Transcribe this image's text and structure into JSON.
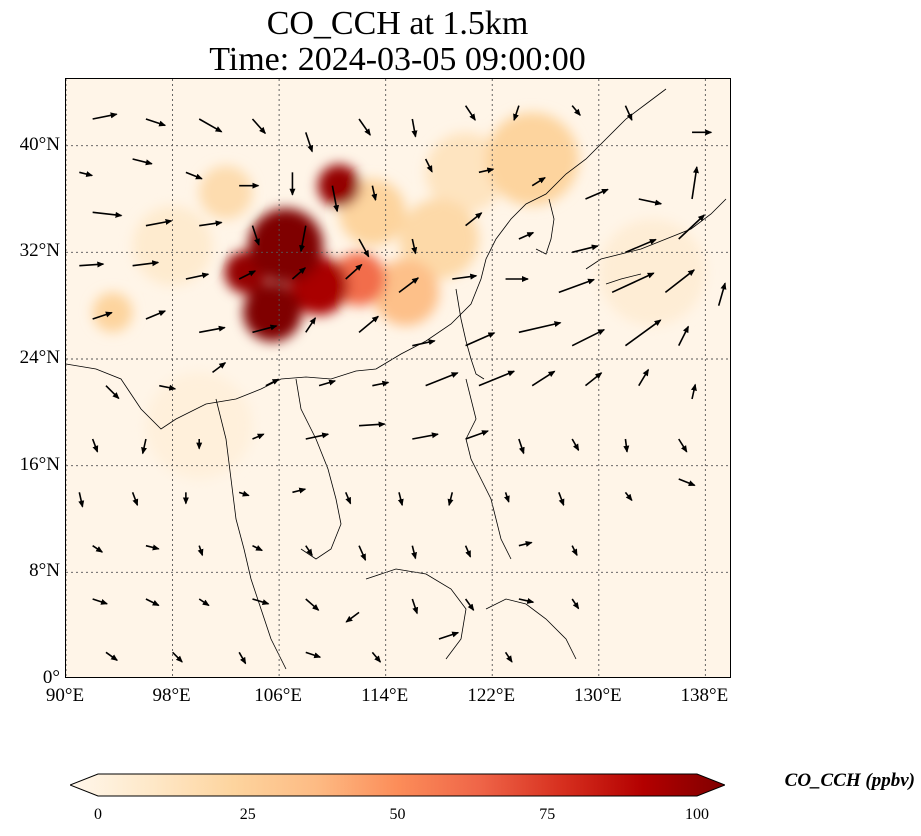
{
  "figure": {
    "title_line_1": "CO_CCH at 1.5km",
    "title_line_2": "Time: 2024-03-05 09:00:00"
  },
  "map": {
    "projection": "PlateCarree",
    "lon_range": [
      90,
      140
    ],
    "lat_range": [
      0,
      45
    ],
    "gridlines": "dotted",
    "lat_ticks": [
      {
        "value": 0,
        "label": "0°"
      },
      {
        "value": 8,
        "label": "8°N"
      },
      {
        "value": 16,
        "label": "16°N"
      },
      {
        "value": 24,
        "label": "24°N"
      },
      {
        "value": 32,
        "label": "32°N"
      },
      {
        "value": 40,
        "label": "40°N"
      }
    ],
    "lon_ticks": [
      {
        "value": 90,
        "label": "90°E"
      },
      {
        "value": 98,
        "label": "98°E"
      },
      {
        "value": 106,
        "label": "106°E"
      },
      {
        "value": 114,
        "label": "114°E"
      },
      {
        "value": 122,
        "label": "122°E"
      },
      {
        "value": 130,
        "label": "130°E"
      },
      {
        "value": 138,
        "label": "138°E"
      }
    ],
    "colormap": "OrRd",
    "colormap_stops": [
      "#fff7ec",
      "#fee8c8",
      "#fdd49e",
      "#fdbb84",
      "#fc8d59",
      "#ef6548",
      "#d7301f",
      "#b30000",
      "#7f0000"
    ],
    "background_color": "#fff5e8",
    "coastline_color": "#000000",
    "field_blobs_co_ppbv": [
      {
        "lon": 106.5,
        "lat": 32.5,
        "value": 100,
        "spread": 2.8
      },
      {
        "lon": 110.5,
        "lat": 37.0,
        "value": 95,
        "spread": 1.6
      },
      {
        "lon": 105.5,
        "lat": 27.5,
        "value": 100,
        "spread": 2.2
      },
      {
        "lon": 109.0,
        "lat": 29.5,
        "value": 90,
        "spread": 2.2
      },
      {
        "lon": 103.5,
        "lat": 30.5,
        "value": 95,
        "spread": 1.6
      },
      {
        "lon": 112.0,
        "lat": 30.0,
        "value": 60,
        "spread": 2.0
      },
      {
        "lon": 115.5,
        "lat": 29.0,
        "value": 35,
        "spread": 2.5
      },
      {
        "lon": 118.0,
        "lat": 33.0,
        "value": 22,
        "spread": 3.0
      },
      {
        "lon": 113.0,
        "lat": 35.0,
        "value": 25,
        "spread": 2.5
      },
      {
        "lon": 125.0,
        "lat": 39.0,
        "value": 25,
        "spread": 3.5
      },
      {
        "lon": 120.0,
        "lat": 38.0,
        "value": 15,
        "spread": 3.0
      },
      {
        "lon": 102.0,
        "lat": 36.5,
        "value": 20,
        "spread": 2.0
      },
      {
        "lon": 93.5,
        "lat": 27.5,
        "value": 25,
        "spread": 1.5
      },
      {
        "lon": 98.0,
        "lat": 32.5,
        "value": 10,
        "spread": 3.0
      },
      {
        "lon": 134.0,
        "lat": 30.5,
        "value": 8,
        "spread": 4.0
      },
      {
        "lon": 100.0,
        "lat": 19.0,
        "value": 6,
        "spread": 4.0
      }
    ],
    "wind_vectors": [
      {
        "lon": 92,
        "lat": 42,
        "u": 1.5,
        "v": 0.3
      },
      {
        "lon": 96,
        "lat": 42,
        "u": 1.2,
        "v": -0.4
      },
      {
        "lon": 100,
        "lat": 42,
        "u": 1.4,
        "v": -0.8
      },
      {
        "lon": 104,
        "lat": 42,
        "u": 0.8,
        "v": -0.9
      },
      {
        "lon": 108,
        "lat": 41,
        "u": 0.4,
        "v": -1.2
      },
      {
        "lon": 112,
        "lat": 42,
        "u": 0.7,
        "v": -1.0
      },
      {
        "lon": 116,
        "lat": 42,
        "u": 0.2,
        "v": -1.1
      },
      {
        "lon": 120,
        "lat": 43,
        "u": 0.6,
        "v": -0.9
      },
      {
        "lon": 124,
        "lat": 43,
        "u": -0.3,
        "v": -0.9
      },
      {
        "lon": 128,
        "lat": 43,
        "u": 0.5,
        "v": -0.6
      },
      {
        "lon": 132,
        "lat": 43,
        "u": 0.4,
        "v": -0.9
      },
      {
        "lon": 137,
        "lat": 41,
        "u": 1.2,
        "v": 0.0
      },
      {
        "lon": 91,
        "lat": 38,
        "u": 0.8,
        "v": -0.2
      },
      {
        "lon": 95,
        "lat": 39,
        "u": 1.2,
        "v": -0.3
      },
      {
        "lon": 99,
        "lat": 38,
        "u": 1.0,
        "v": -0.4
      },
      {
        "lon": 103,
        "lat": 37,
        "u": 1.2,
        "v": 0.0
      },
      {
        "lon": 107,
        "lat": 38,
        "u": 0.0,
        "v": -1.4
      },
      {
        "lon": 110,
        "lat": 37,
        "u": 0.3,
        "v": -1.6
      },
      {
        "lon": 113,
        "lat": 37,
        "u": 0.2,
        "v": -0.9
      },
      {
        "lon": 117,
        "lat": 39,
        "u": 0.4,
        "v": -0.8
      },
      {
        "lon": 121,
        "lat": 38,
        "u": 0.9,
        "v": 0.2
      },
      {
        "lon": 125,
        "lat": 37,
        "u": 0.8,
        "v": 0.5
      },
      {
        "lon": 129,
        "lat": 36,
        "u": 1.4,
        "v": 0.6
      },
      {
        "lon": 133,
        "lat": 36,
        "u": 1.4,
        "v": -0.3
      },
      {
        "lon": 137,
        "lat": 36,
        "u": 0.3,
        "v": 2.0
      },
      {
        "lon": 92,
        "lat": 35,
        "u": 1.8,
        "v": -0.2
      },
      {
        "lon": 96,
        "lat": 34,
        "u": 1.6,
        "v": 0.3
      },
      {
        "lon": 100,
        "lat": 34,
        "u": 1.4,
        "v": 0.2
      },
      {
        "lon": 104,
        "lat": 34,
        "u": 0.4,
        "v": -1.2
      },
      {
        "lon": 108,
        "lat": 34,
        "u": -0.3,
        "v": -1.6
      },
      {
        "lon": 112,
        "lat": 33,
        "u": 0.6,
        "v": -1.1
      },
      {
        "lon": 116,
        "lat": 33,
        "u": 0.2,
        "v": -0.9
      },
      {
        "lon": 120,
        "lat": 34,
        "u": 1.0,
        "v": 0.8
      },
      {
        "lon": 124,
        "lat": 33,
        "u": 0.9,
        "v": 0.4
      },
      {
        "lon": 128,
        "lat": 32,
        "u": 1.6,
        "v": 0.4
      },
      {
        "lon": 132,
        "lat": 32,
        "u": 1.9,
        "v": 0.8
      },
      {
        "lon": 136,
        "lat": 33,
        "u": 1.6,
        "v": 1.5
      },
      {
        "lon": 91,
        "lat": 31,
        "u": 1.5,
        "v": 0.1
      },
      {
        "lon": 95,
        "lat": 31,
        "u": 1.6,
        "v": 0.2
      },
      {
        "lon": 99,
        "lat": 30,
        "u": 1.4,
        "v": 0.3
      },
      {
        "lon": 103,
        "lat": 30,
        "u": 1.0,
        "v": 0.5
      },
      {
        "lon": 107,
        "lat": 30,
        "u": 0.8,
        "v": 0.7
      },
      {
        "lon": 111,
        "lat": 30,
        "u": 1.0,
        "v": 0.9
      },
      {
        "lon": 115,
        "lat": 29,
        "u": 1.2,
        "v": 0.9
      },
      {
        "lon": 119,
        "lat": 30,
        "u": 1.5,
        "v": 0.2
      },
      {
        "lon": 123,
        "lat": 30,
        "u": 1.4,
        "v": 0.0
      },
      {
        "lon": 127,
        "lat": 29,
        "u": 2.2,
        "v": 0.8
      },
      {
        "lon": 131,
        "lat": 29,
        "u": 2.6,
        "v": 1.2
      },
      {
        "lon": 135,
        "lat": 29,
        "u": 1.8,
        "v": 1.4
      },
      {
        "lon": 139,
        "lat": 28,
        "u": 0.4,
        "v": 1.4
      },
      {
        "lon": 92,
        "lat": 27,
        "u": 1.2,
        "v": 0.4
      },
      {
        "lon": 96,
        "lat": 27,
        "u": 1.2,
        "v": 0.5
      },
      {
        "lon": 100,
        "lat": 26,
        "u": 1.6,
        "v": 0.3
      },
      {
        "lon": 104,
        "lat": 26,
        "u": 1.5,
        "v": 0.4
      },
      {
        "lon": 108,
        "lat": 26,
        "u": 0.6,
        "v": 0.9
      },
      {
        "lon": 112,
        "lat": 26,
        "u": 1.2,
        "v": 1.0
      },
      {
        "lon": 116,
        "lat": 25,
        "u": 1.4,
        "v": 0.3
      },
      {
        "lon": 120,
        "lat": 25,
        "u": 1.8,
        "v": 0.8
      },
      {
        "lon": 124,
        "lat": 26,
        "u": 2.6,
        "v": 0.6
      },
      {
        "lon": 128,
        "lat": 25,
        "u": 2.0,
        "v": 1.0
      },
      {
        "lon": 132,
        "lat": 25,
        "u": 2.2,
        "v": 1.6
      },
      {
        "lon": 136,
        "lat": 25,
        "u": 0.6,
        "v": 1.2
      },
      {
        "lon": 93,
        "lat": 22,
        "u": 0.8,
        "v": -0.8
      },
      {
        "lon": 97,
        "lat": 22,
        "u": 1.0,
        "v": -0.2
      },
      {
        "lon": 101,
        "lat": 23,
        "u": 0.8,
        "v": 0.6
      },
      {
        "lon": 105,
        "lat": 22,
        "u": 0.8,
        "v": 0.4
      },
      {
        "lon": 109,
        "lat": 22,
        "u": 1.0,
        "v": 0.3
      },
      {
        "lon": 113,
        "lat": 22,
        "u": 1.0,
        "v": 0.2
      },
      {
        "lon": 117,
        "lat": 22,
        "u": 2.0,
        "v": 0.8
      },
      {
        "lon": 121,
        "lat": 22,
        "u": 2.2,
        "v": 0.9
      },
      {
        "lon": 125,
        "lat": 22,
        "u": 1.4,
        "v": 0.9
      },
      {
        "lon": 129,
        "lat": 22,
        "u": 1.0,
        "v": 0.8
      },
      {
        "lon": 133,
        "lat": 22,
        "u": 0.6,
        "v": 1.0
      },
      {
        "lon": 137,
        "lat": 21,
        "u": 0.2,
        "v": 0.9
      },
      {
        "lon": 92,
        "lat": 18,
        "u": 0.3,
        "v": -0.8
      },
      {
        "lon": 96,
        "lat": 18,
        "u": -0.2,
        "v": -0.9
      },
      {
        "lon": 100,
        "lat": 18,
        "u": 0.0,
        "v": -0.6
      },
      {
        "lon": 104,
        "lat": 18,
        "u": 0.7,
        "v": 0.3
      },
      {
        "lon": 108,
        "lat": 18,
        "u": 1.4,
        "v": 0.3
      },
      {
        "lon": 112,
        "lat": 19,
        "u": 1.6,
        "v": 0.1
      },
      {
        "lon": 116,
        "lat": 18,
        "u": 1.6,
        "v": 0.3
      },
      {
        "lon": 120,
        "lat": 18,
        "u": 1.4,
        "v": 0.5
      },
      {
        "lon": 124,
        "lat": 18,
        "u": 0.3,
        "v": -0.9
      },
      {
        "lon": 128,
        "lat": 18,
        "u": 0.4,
        "v": -0.7
      },
      {
        "lon": 132,
        "lat": 18,
        "u": 0.1,
        "v": -0.8
      },
      {
        "lon": 136,
        "lat": 18,
        "u": 0.5,
        "v": -0.8
      },
      {
        "lon": 91,
        "lat": 14,
        "u": 0.2,
        "v": -0.9
      },
      {
        "lon": 95,
        "lat": 14,
        "u": 0.3,
        "v": -0.8
      },
      {
        "lon": 99,
        "lat": 14,
        "u": 0.0,
        "v": -0.7
      },
      {
        "lon": 103,
        "lat": 14,
        "u": 0.6,
        "v": -0.2
      },
      {
        "lon": 107,
        "lat": 14,
        "u": 0.8,
        "v": 0.2
      },
      {
        "lon": 111,
        "lat": 14,
        "u": 0.3,
        "v": -0.7
      },
      {
        "lon": 115,
        "lat": 14,
        "u": 0.2,
        "v": -0.8
      },
      {
        "lon": 119,
        "lat": 14,
        "u": -0.2,
        "v": -0.8
      },
      {
        "lon": 123,
        "lat": 14,
        "u": 0.2,
        "v": -0.6
      },
      {
        "lon": 127,
        "lat": 14,
        "u": 0.3,
        "v": -0.8
      },
      {
        "lon": 132,
        "lat": 14,
        "u": 0.4,
        "v": -0.5
      },
      {
        "lon": 136,
        "lat": 15,
        "u": 1.0,
        "v": -0.4
      },
      {
        "lon": 92,
        "lat": 10,
        "u": 0.6,
        "v": -0.4
      },
      {
        "lon": 96,
        "lat": 10,
        "u": 0.8,
        "v": -0.2
      },
      {
        "lon": 100,
        "lat": 10,
        "u": 0.2,
        "v": -0.6
      },
      {
        "lon": 104,
        "lat": 10,
        "u": 0.6,
        "v": -0.3
      },
      {
        "lon": 108,
        "lat": 10,
        "u": 0.4,
        "v": -0.6
      },
      {
        "lon": 112,
        "lat": 10,
        "u": 0.4,
        "v": -0.9
      },
      {
        "lon": 116,
        "lat": 10,
        "u": 0.2,
        "v": -0.8
      },
      {
        "lon": 120,
        "lat": 10,
        "u": 0.3,
        "v": -0.7
      },
      {
        "lon": 124,
        "lat": 10,
        "u": 0.8,
        "v": 0.2
      },
      {
        "lon": 128,
        "lat": 10,
        "u": 0.3,
        "v": -0.6
      },
      {
        "lon": 92,
        "lat": 6,
        "u": 0.9,
        "v": -0.3
      },
      {
        "lon": 96,
        "lat": 6,
        "u": 0.8,
        "v": -0.4
      },
      {
        "lon": 100,
        "lat": 6,
        "u": 0.6,
        "v": -0.4
      },
      {
        "lon": 104,
        "lat": 6,
        "u": 1.0,
        "v": -0.3
      },
      {
        "lon": 108,
        "lat": 6,
        "u": 0.8,
        "v": -0.7
      },
      {
        "lon": 112,
        "lat": 5,
        "u": -0.8,
        "v": -0.6
      },
      {
        "lon": 116,
        "lat": 6,
        "u": 0.3,
        "v": -0.9
      },
      {
        "lon": 120,
        "lat": 6,
        "u": 0.5,
        "v": -0.7
      },
      {
        "lon": 124,
        "lat": 6,
        "u": 0.9,
        "v": -0.2
      },
      {
        "lon": 128,
        "lat": 6,
        "u": 0.4,
        "v": -0.6
      },
      {
        "lon": 93,
        "lat": 2,
        "u": 0.7,
        "v": -0.5
      },
      {
        "lon": 98,
        "lat": 2,
        "u": 0.6,
        "v": -0.6
      },
      {
        "lon": 103,
        "lat": 2,
        "u": 0.4,
        "v": -0.7
      },
      {
        "lon": 108,
        "lat": 2,
        "u": 0.9,
        "v": -0.3
      },
      {
        "lon": 113,
        "lat": 2,
        "u": 0.5,
        "v": -0.6
      },
      {
        "lon": 118,
        "lat": 3,
        "u": 1.2,
        "v": 0.4
      },
      {
        "lon": 123,
        "lat": 2,
        "u": 0.4,
        "v": -0.6
      }
    ]
  },
  "colorbar": {
    "label": "CO_CCH (ppbv)",
    "min": 0,
    "max": 100,
    "extend": "both",
    "ticks": [
      {
        "value": 0,
        "label": "0"
      },
      {
        "value": 25,
        "label": "25"
      },
      {
        "value": 50,
        "label": "50"
      },
      {
        "value": 75,
        "label": "75"
      },
      {
        "value": 100,
        "label": "100"
      }
    ]
  }
}
